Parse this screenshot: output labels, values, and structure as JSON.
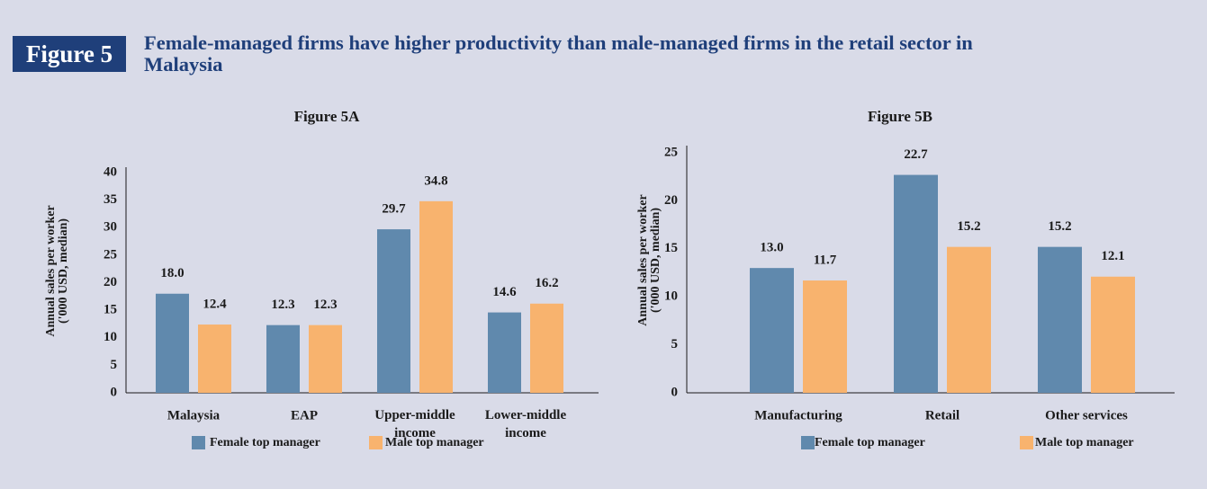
{
  "header": {
    "figure_label": "Figure 5",
    "title": "Female-managed firms have higher productivity than male-managed firms in the retail sector in Malaysia"
  },
  "chart_data": [
    {
      "type": "bar",
      "title": "Figure 5A",
      "ylabel": [
        "Annual sales per worker",
        "('000 USD, median)"
      ],
      "categories": [
        "Malaysia",
        "EAP",
        "Upper-middle income",
        "Lower-middle income"
      ],
      "series": [
        {
          "name": "Female top manager",
          "color": "#6089ad",
          "values": [
            18.0,
            12.3,
            29.7,
            14.6
          ],
          "value_labels": [
            "18.0",
            "12.3",
            "29.7",
            "14.6"
          ]
        },
        {
          "name": "Male top manager",
          "color": "#f8b36e",
          "values": [
            12.4,
            12.3,
            34.8,
            16.2
          ],
          "value_labels": [
            "12.4",
            "12.3",
            "34.8",
            "16.2"
          ]
        }
      ],
      "ylim": [
        0,
        40
      ],
      "yticks": [
        0,
        5,
        10,
        15,
        20,
        25,
        30,
        35,
        40
      ],
      "grid": false,
      "legend": "bottom"
    },
    {
      "type": "bar",
      "title": "Figure 5B",
      "ylabel": [
        "Annual sales per worker",
        "('000 USD, median)"
      ],
      "categories": [
        "Manufacturing",
        "Retail",
        "Other services"
      ],
      "series": [
        {
          "name": "Female top manager",
          "color": "#6089ad",
          "values": [
            13.0,
            22.7,
            15.2
          ],
          "value_labels": [
            "13.0",
            "22.7",
            "15.2"
          ]
        },
        {
          "name": "Male top manager",
          "color": "#f8b36e",
          "values": [
            11.7,
            15.2,
            12.1
          ],
          "value_labels": [
            "11.7",
            "15.2",
            "12.1"
          ]
        }
      ],
      "ylim": [
        0,
        25
      ],
      "yticks": [
        0,
        5,
        10,
        15,
        20,
        25
      ],
      "grid": false,
      "legend": "bottom"
    }
  ]
}
